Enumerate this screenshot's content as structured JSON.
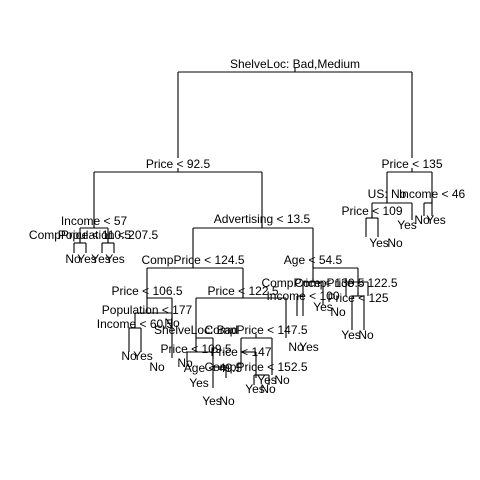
{
  "tree": {
    "split_labels": [
      "ShelveLoc: Bad,Medium",
      "Price < 92.5",
      "Price < 135",
      "Income < 57",
      "CompPrice < 110.5",
      "Population < 207.5",
      "Advertising < 13.5",
      "CompPrice < 124.5",
      "Price < 106.5",
      "Population < 177",
      "Income < 60.5",
      "Price < 122.5",
      "ShelveLoc: Bad",
      "Price < 109.5",
      "Age < 49.5",
      "CompPrice < 147.5",
      "Price < 147",
      "CompPrice < 152.5",
      "Age < 54.5",
      "CompPrice < 130.5",
      "Income < 100",
      "CompPrice < 122.5",
      "Price < 125",
      "US: No",
      "Price < 109",
      "Income < 46"
    ],
    "leaf_labels": [
      "No",
      "Yes",
      "Yes",
      "Yes",
      "No",
      "Yes",
      "No",
      "No",
      "Yes",
      "No",
      "Yes",
      "No",
      "No",
      "Yes",
      "Yes",
      "No",
      "No",
      "Yes",
      "Yes",
      "No",
      "Yes",
      "No",
      "Yes",
      "No",
      "Yes",
      "No",
      "Yes"
    ]
  }
}
